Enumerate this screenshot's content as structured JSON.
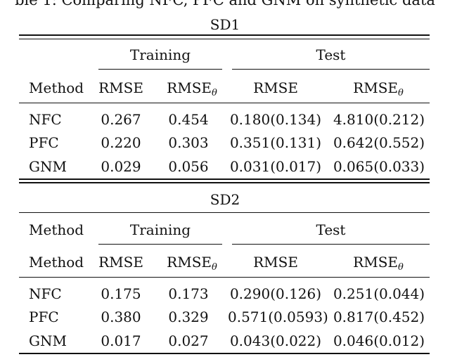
{
  "caption": "ble 1: Comparing NFC, PFC and GNM on synthetic data",
  "sections": [
    {
      "title": "SD1",
      "group_header": {
        "method": "",
        "training": "Training",
        "test": "Test"
      },
      "col_header": {
        "method": "Method",
        "c1": "RMSE",
        "c2_base": "RMSE",
        "c2_sub": "θ",
        "c3": "RMSE",
        "c4_base": "RMSE",
        "c4_sub": "θ"
      },
      "rows": [
        {
          "method": "NFC",
          "tr_rmse": "0.267",
          "tr_rmse_theta": "0.454",
          "te_rmse": "0.180(0.134)",
          "te_rmse_theta": "4.810(0.212)"
        },
        {
          "method": "PFC",
          "tr_rmse": "0.220",
          "tr_rmse_theta": "0.303",
          "te_rmse": "0.351(0.131)",
          "te_rmse_theta": "0.642(0.552)"
        },
        {
          "method": "GNM",
          "tr_rmse": "0.029",
          "tr_rmse_theta": "0.056",
          "te_rmse": "0.031(0.017)",
          "te_rmse_theta": "0.065(0.033)"
        }
      ]
    },
    {
      "title": "SD2",
      "group_header": {
        "method": "Method",
        "training": "Training",
        "test": "Test"
      },
      "col_header": {
        "method": "Method",
        "c1": "RMSE",
        "c2_base": "RMSE",
        "c2_sub": "θ",
        "c3": "RMSE",
        "c4_base": "RMSE",
        "c4_sub": "θ"
      },
      "rows": [
        {
          "method": "NFC",
          "tr_rmse": "0.175",
          "tr_rmse_theta": "0.173",
          "te_rmse": "0.290(0.126)",
          "te_rmse_theta": "0.251(0.044)"
        },
        {
          "method": "PFC",
          "tr_rmse": "0.380",
          "tr_rmse_theta": "0.329",
          "te_rmse": "0.571(0.0593)",
          "te_rmse_theta": "0.817(0.452)"
        },
        {
          "method": "GNM",
          "tr_rmse": "0.017",
          "tr_rmse_theta": "0.027",
          "te_rmse": "0.043(0.022)",
          "te_rmse_theta": "0.046(0.012)"
        }
      ]
    }
  ]
}
